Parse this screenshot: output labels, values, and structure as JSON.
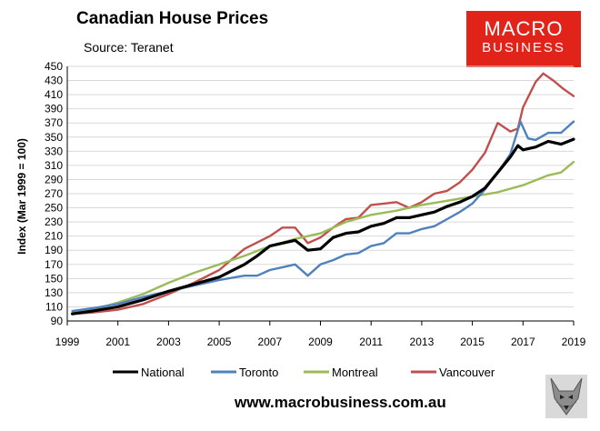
{
  "header": {
    "title": "Canadian House Prices",
    "subtitle": "Source: Teranet"
  },
  "logo": {
    "line1": "MACRO",
    "line2": "BUSINESS"
  },
  "footer": {
    "url": "www.macrobusiness.com.au"
  },
  "colors": {
    "national": "#000000",
    "toronto": "#4f81bd",
    "montreal": "#9bbb59",
    "vancouver": "#c0504d",
    "logo_bg": "#e2231a"
  },
  "chart_data": {
    "type": "line",
    "title": "Canadian House Prices",
    "ylabel": "Index (Mar 1999 = 100)",
    "xlabel": "",
    "xlim": [
      1999,
      2019
    ],
    "ylim": [
      90,
      450
    ],
    "xticks": [
      1999,
      2001,
      2003,
      2005,
      2007,
      2009,
      2011,
      2013,
      2015,
      2017,
      2019
    ],
    "yticks": [
      90,
      110,
      130,
      150,
      170,
      190,
      210,
      230,
      250,
      270,
      290,
      310,
      330,
      350,
      370,
      390,
      410,
      430,
      450
    ],
    "grid": true,
    "legend_position": "bottom",
    "series": [
      {
        "name": "National",
        "color": "#000000",
        "x": [
          1999.2,
          2000,
          2001,
          2002,
          2003,
          2004,
          2005,
          2006,
          2006.5,
          2007,
          2007.5,
          2008,
          2008.5,
          2009,
          2009.5,
          2010,
          2010.5,
          2011,
          2011.5,
          2012,
          2012.5,
          2013,
          2013.5,
          2014,
          2014.5,
          2015,
          2015.5,
          2016,
          2016.5,
          2016.8,
          2017,
          2017.5,
          2018,
          2018.5,
          2019
        ],
        "y": [
          100,
          104,
          110,
          120,
          132,
          142,
          152,
          170,
          182,
          196,
          200,
          204,
          190,
          192,
          208,
          214,
          216,
          224,
          228,
          236,
          236,
          240,
          244,
          252,
          258,
          266,
          278,
          300,
          322,
          338,
          332,
          336,
          344,
          340,
          347
        ]
      },
      {
        "name": "Toronto",
        "color": "#4f81bd",
        "x": [
          1999.2,
          2000,
          2001,
          2002,
          2003,
          2004,
          2005,
          2006,
          2006.5,
          2007,
          2007.5,
          2008,
          2008.5,
          2009,
          2009.5,
          2010,
          2010.5,
          2011,
          2011.5,
          2012,
          2012.5,
          2013,
          2013.5,
          2014,
          2014.5,
          2015,
          2015.5,
          2016,
          2016.5,
          2016.9,
          2017.2,
          2017.5,
          2018,
          2018.5,
          2019
        ],
        "y": [
          104,
          108,
          114,
          124,
          132,
          140,
          148,
          154,
          154,
          162,
          166,
          170,
          154,
          170,
          176,
          184,
          186,
          196,
          200,
          214,
          214,
          220,
          224,
          234,
          244,
          256,
          276,
          300,
          326,
          372,
          348,
          346,
          356,
          356,
          372
        ]
      },
      {
        "name": "Montreal",
        "color": "#9bbb59",
        "x": [
          1999.2,
          2000,
          2001,
          2002,
          2003,
          2004,
          2005,
          2006,
          2007,
          2008,
          2009,
          2010,
          2011,
          2012,
          2013,
          2014,
          2015,
          2016,
          2017,
          2018,
          2018.5,
          2019
        ],
        "y": [
          102,
          106,
          116,
          128,
          144,
          158,
          170,
          182,
          196,
          206,
          214,
          230,
          240,
          246,
          254,
          260,
          266,
          272,
          282,
          296,
          300,
          315
        ]
      },
      {
        "name": "Vancouver",
        "color": "#c0504d",
        "x": [
          1999.2,
          2000,
          2001,
          2002,
          2003,
          2004,
          2005,
          2006,
          2007,
          2007.5,
          2008,
          2008.5,
          2009,
          2009.5,
          2010,
          2010.5,
          2011,
          2011.5,
          2012,
          2012.5,
          2013,
          2013.5,
          2014,
          2014.5,
          2015,
          2015.5,
          2016,
          2016.5,
          2016.8,
          2017,
          2017.5,
          2017.8,
          2018.2,
          2018.6,
          2019
        ],
        "y": [
          100,
          102,
          106,
          114,
          128,
          144,
          162,
          192,
          210,
          222,
          222,
          200,
          208,
          222,
          234,
          236,
          254,
          256,
          258,
          250,
          258,
          270,
          274,
          286,
          304,
          328,
          370,
          358,
          362,
          392,
          428,
          440,
          430,
          418,
          408
        ]
      }
    ]
  }
}
